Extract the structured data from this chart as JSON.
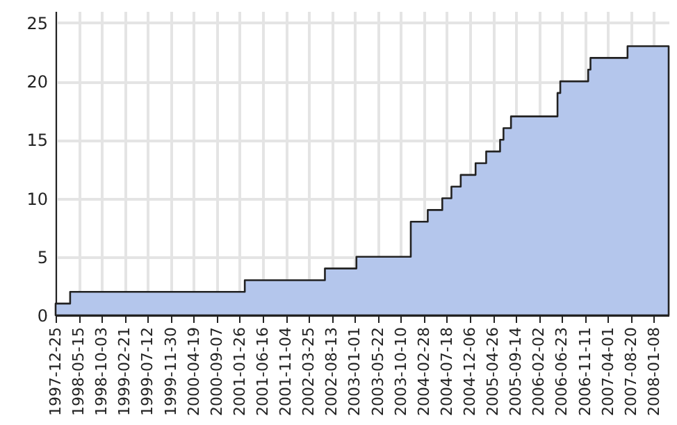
{
  "chart_data": {
    "type": "area",
    "x": [
      "1997-12-25",
      "1998-03-24",
      "2001-02-26",
      "2002-07-02",
      "2003-01-11",
      "2003-12-10",
      "2004-03-23",
      "2004-06-20",
      "2004-08-15",
      "2004-10-11",
      "2005-01-10",
      "2005-03-16",
      "2005-06-09",
      "2005-06-30",
      "2005-08-15",
      "2006-05-27",
      "2006-06-13",
      "2006-12-01",
      "2006-12-15",
      "2007-07-30",
      "2008-04-07"
    ],
    "series": [
      {
        "color": "#b4c6ec",
        "values": [
          1,
          2,
          3,
          4,
          5,
          8,
          9,
          10,
          11,
          12,
          13,
          14,
          15,
          16,
          17,
          19,
          20,
          21,
          22,
          23,
          23
        ]
      }
    ],
    "xlim": [
      "1997-12-25",
      "2008-04-07"
    ],
    "xticks": [
      "1997-12-25",
      "1998-05-15",
      "1998-10-03",
      "1999-02-21",
      "1999-07-12",
      "1999-11-30",
      "2000-04-19",
      "2000-09-07",
      "2001-01-26",
      "2001-06-16",
      "2001-11-04",
      "2002-03-25",
      "2002-08-13",
      "2003-01-01",
      "2003-05-22",
      "2003-10-10",
      "2004-02-28",
      "2004-07-18",
      "2004-12-06",
      "2005-04-26",
      "2005-09-14",
      "2006-02-02",
      "2006-06-23",
      "2006-11-11",
      "2007-04-01",
      "2007-08-20",
      "2008-01-08"
    ],
    "ylim": [
      0,
      26
    ],
    "yticks": [
      0,
      5,
      10,
      15,
      20,
      25
    ],
    "grid": true
  }
}
